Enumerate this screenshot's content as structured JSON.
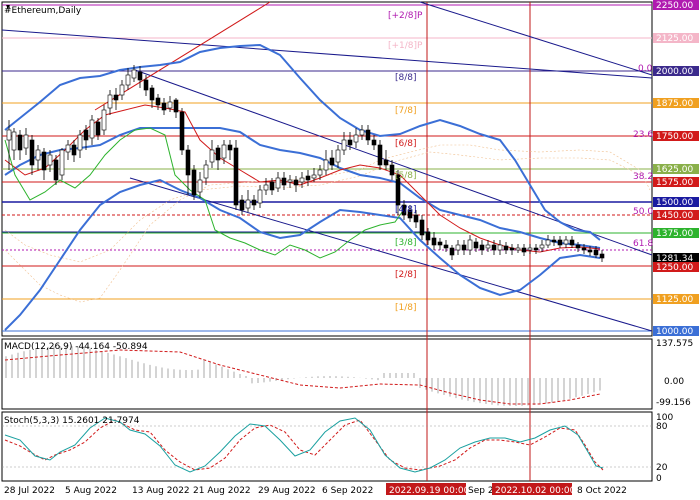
{
  "window": {
    "symbol_title": "#Ethereum,Daily",
    "macd_title": "MACD(12,26,9) -44.164 -50.894",
    "stoch_title": "Stoch(5,3,3) 15.2601 21.7974"
  },
  "price_axis": {
    "labels": [
      "2250.00",
      "2125.00",
      "2000.00",
      "1875.00",
      "1750.00",
      "1625.00",
      "1575.00",
      "1500.00",
      "1450.00",
      "1375.00",
      "1281.34",
      "1250.00",
      "1125.00",
      "1000.00"
    ],
    "current_price": "1281.34",
    "macd_labels": [
      "137.575",
      "0.00",
      "-99.156"
    ],
    "stoch_labels": [
      "100",
      "80",
      "20",
      "0"
    ]
  },
  "murrey_labels": [
    "[+2/8]P",
    "[+1/8]P",
    "[8/8]",
    "[7/8]",
    "[6/8]",
    "[5/8]",
    "[4/8]",
    "[3/8]",
    "[2/8]",
    "[1/8]"
  ],
  "fib_labels": [
    "0.0",
    "23.6",
    "38.2",
    "50.0",
    "61.8"
  ],
  "time_axis": {
    "labels": [
      "28 Jul 2022",
      "5 Aug 2022",
      "13 Aug 2022",
      "21 Aug 2022",
      "29 Aug 2022",
      "6 Sep 2022",
      "Sep 20",
      "8 Oct 2022"
    ],
    "markers": [
      "2022.09.19 00:00",
      "2022.10.02 00:00"
    ]
  },
  "colors": {
    "background": "#ffffff",
    "candle": "#000000",
    "bollinger": "#3b6fd6",
    "red_ma": "#d11a1a",
    "green_line": "#2db32d",
    "channel": "#1a1a8c",
    "magenta": "#b01ab0",
    "orange": "#f0a020",
    "pink": "#f4b6c8",
    "olive": "#8ab04a",
    "price_badge_bg": "#000000",
    "red_badge_bg": "#d11a1a",
    "marker_badge_bg": "#c2181a"
  }
}
